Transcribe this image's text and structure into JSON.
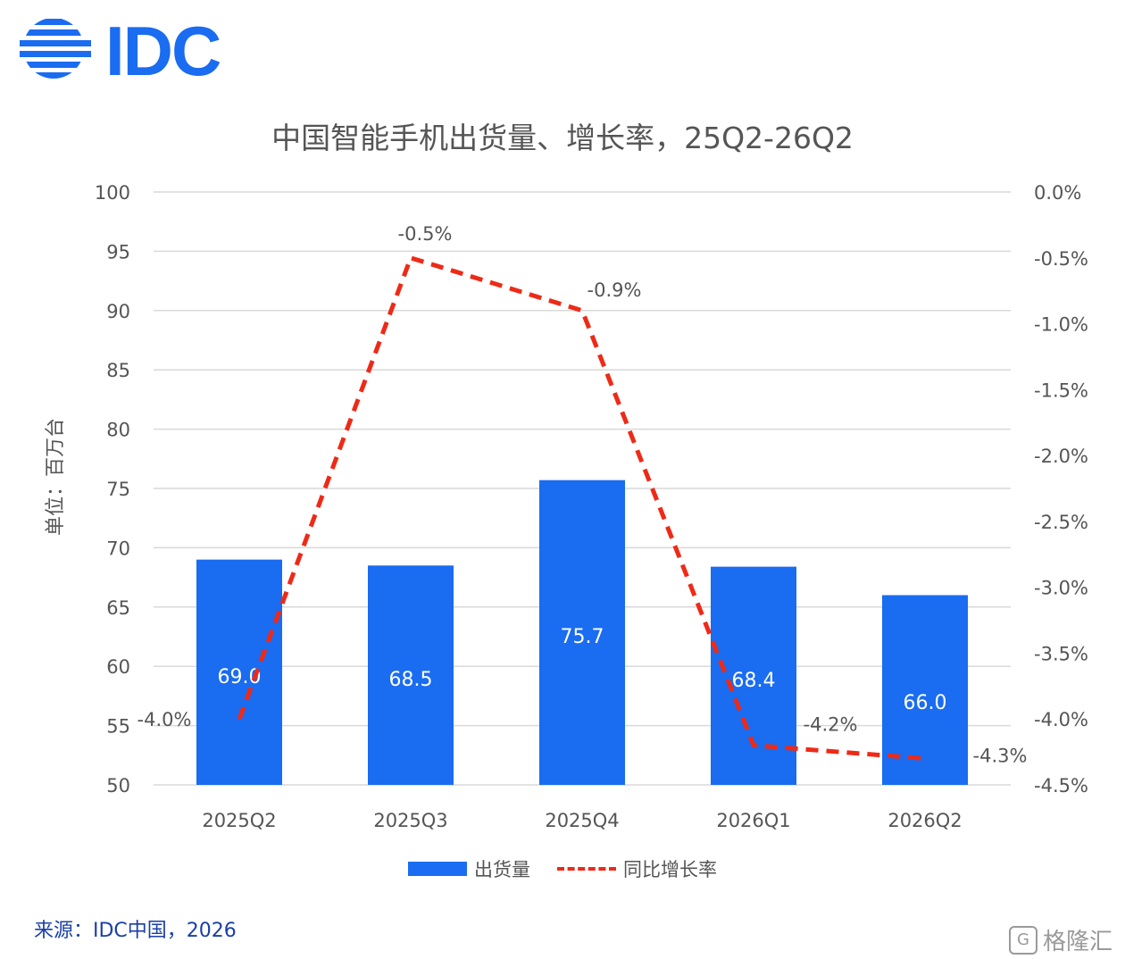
{
  "logo": {
    "text": "IDC",
    "color": "#1a6cf0"
  },
  "unit_label": "单位：百万台",
  "legend": {
    "bar_label": "出货量",
    "line_label": "同比增长率"
  },
  "source": "来源：IDC中国，2026",
  "watermark": {
    "glyph": "G",
    "text": "格隆汇"
  },
  "chart_data": {
    "type": "bar",
    "title": "中国智能手机出货量、增长率，25Q2-26Q2",
    "categories": [
      "2025Q2",
      "2025Q3",
      "2025Q4",
      "2026Q1",
      "2026Q2"
    ],
    "series": [
      {
        "name": "出货量",
        "type": "bar",
        "axis": "left",
        "color": "#1a6cf0",
        "values": [
          69.0,
          68.5,
          75.7,
          68.4,
          66.0
        ],
        "labels": [
          "69.0",
          "68.5",
          "75.7",
          "68.4",
          "66.0"
        ]
      },
      {
        "name": "同比增长率",
        "type": "line",
        "style": "dashed",
        "axis": "right",
        "color": "#ee2a17",
        "values": [
          -4.0,
          -0.5,
          -0.9,
          -4.2,
          -4.3
        ],
        "labels": [
          "-4.0%",
          "-0.5%",
          "-0.9%",
          "-4.2%",
          "-4.3%"
        ]
      }
    ],
    "y_left": {
      "range": [
        50,
        100
      ],
      "ticks": [
        "100",
        "95",
        "90",
        "85",
        "80",
        "75",
        "70",
        "65",
        "60",
        "55",
        "50"
      ]
    },
    "y_right": {
      "range": [
        -4.5,
        0.0
      ],
      "ticks": [
        "0.0%",
        "-0.5%",
        "-1.0%",
        "-1.5%",
        "-2.0%",
        "-2.5%",
        "-3.0%",
        "-3.5%",
        "-4.0%",
        "-4.5%"
      ]
    },
    "grid": true,
    "legend_position": "bottom"
  }
}
